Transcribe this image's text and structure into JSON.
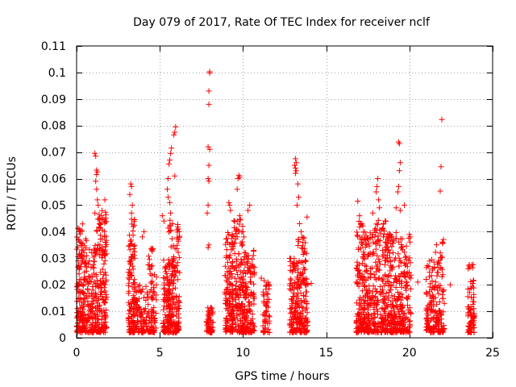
{
  "chart_data": {
    "type": "scatter",
    "title": "Day 079 of 2017, Rate Of TEC Index for receiver nclf",
    "xlabel": "GPS time / hours",
    "ylabel": "ROTI / TECUs",
    "xlim": [
      0,
      25
    ],
    "ylim": [
      0,
      0.11
    ],
    "xticks": [
      "0",
      "5",
      "10",
      "15",
      "20",
      "25"
    ],
    "yticks": [
      "0",
      "0.01",
      "0.02",
      "0.03",
      "0.04",
      "0.05",
      "0.06",
      "0.07",
      "0.08",
      "0.09",
      "0.1",
      "0.11"
    ],
    "grid": true,
    "marker": "plus",
    "color": "#ff0000",
    "clusters": [
      {
        "x": [
          0.0,
          0.6
        ],
        "ymax": 0.043,
        "n": 160
      },
      {
        "x": [
          0.6,
          1.2
        ],
        "ymax": 0.035,
        "n": 120
      },
      {
        "x": [
          1.2,
          1.8
        ],
        "ymax": 0.048,
        "n": 160
      },
      {
        "x": [
          3.1,
          3.5
        ],
        "ymax": 0.045,
        "n": 130
      },
      {
        "x": [
          3.5,
          4.3
        ],
        "ymax": 0.02,
        "n": 90
      },
      {
        "x": [
          4.3,
          4.8
        ],
        "ymax": 0.035,
        "n": 80
      },
      {
        "x": [
          5.2,
          5.6
        ],
        "ymax": 0.03,
        "n": 80
      },
      {
        "x": [
          5.5,
          6.2
        ],
        "ymax": 0.045,
        "n": 170
      },
      {
        "x": [
          7.8,
          8.2
        ],
        "ymax": 0.012,
        "n": 60
      },
      {
        "x": [
          8.9,
          9.4
        ],
        "ymax": 0.04,
        "n": 120
      },
      {
        "x": [
          9.3,
          10.0
        ],
        "ymax": 0.045,
        "n": 150
      },
      {
        "x": [
          10.0,
          10.7
        ],
        "ymax": 0.033,
        "n": 140
      },
      {
        "x": [
          11.2,
          11.6
        ],
        "ymax": 0.022,
        "n": 60
      },
      {
        "x": [
          12.8,
          13.3
        ],
        "ymax": 0.03,
        "n": 110
      },
      {
        "x": [
          13.3,
          13.9
        ],
        "ymax": 0.038,
        "n": 130
      },
      {
        "x": [
          16.8,
          17.3
        ],
        "ymax": 0.044,
        "n": 130
      },
      {
        "x": [
          17.3,
          17.9
        ],
        "ymax": 0.04,
        "n": 130
      },
      {
        "x": [
          17.9,
          18.6
        ],
        "ymax": 0.045,
        "n": 150
      },
      {
        "x": [
          18.6,
          19.3
        ],
        "ymax": 0.04,
        "n": 150
      },
      {
        "x": [
          19.3,
          20.1
        ],
        "ymax": 0.038,
        "n": 150
      },
      {
        "x": [
          21.0,
          21.5
        ],
        "ymax": 0.03,
        "n": 90
      },
      {
        "x": [
          21.5,
          22.1
        ],
        "ymax": 0.038,
        "n": 100
      },
      {
        "x": [
          23.5,
          23.9
        ],
        "ymax": 0.028,
        "n": 80
      }
    ],
    "notable_points": [
      {
        "x": 8.0,
        "y": 0.1003
      },
      {
        "x": 8.0,
        "y": 0.0998
      },
      {
        "x": 7.95,
        "y": 0.093
      },
      {
        "x": 7.95,
        "y": 0.088
      },
      {
        "x": 7.9,
        "y": 0.072
      },
      {
        "x": 8.0,
        "y": 0.071
      },
      {
        "x": 7.95,
        "y": 0.065
      },
      {
        "x": 7.9,
        "y": 0.06
      },
      {
        "x": 7.95,
        "y": 0.059
      },
      {
        "x": 7.9,
        "y": 0.05
      },
      {
        "x": 7.85,
        "y": 0.047
      },
      {
        "x": 7.95,
        "y": 0.035
      },
      {
        "x": 7.9,
        "y": 0.034
      },
      {
        "x": 21.95,
        "y": 0.0823
      },
      {
        "x": 21.9,
        "y": 0.0645
      },
      {
        "x": 21.85,
        "y": 0.0553
      },
      {
        "x": 19.35,
        "y": 0.0738
      },
      {
        "x": 19.4,
        "y": 0.0732
      },
      {
        "x": 19.45,
        "y": 0.066
      },
      {
        "x": 19.4,
        "y": 0.063
      },
      {
        "x": 19.35,
        "y": 0.057
      },
      {
        "x": 19.3,
        "y": 0.055
      },
      {
        "x": 19.45,
        "y": 0.048
      },
      {
        "x": 5.95,
        "y": 0.0795
      },
      {
        "x": 5.9,
        "y": 0.0775
      },
      {
        "x": 5.85,
        "y": 0.0765
      },
      {
        "x": 5.7,
        "y": 0.0715
      },
      {
        "x": 5.65,
        "y": 0.0695
      },
      {
        "x": 5.6,
        "y": 0.067
      },
      {
        "x": 5.55,
        "y": 0.0655
      },
      {
        "x": 5.9,
        "y": 0.061
      },
      {
        "x": 5.5,
        "y": 0.06
      },
      {
        "x": 5.45,
        "y": 0.056
      },
      {
        "x": 5.5,
        "y": 0.053
      },
      {
        "x": 5.6,
        "y": 0.051
      },
      {
        "x": 5.65,
        "y": 0.047
      },
      {
        "x": 5.15,
        "y": 0.046
      },
      {
        "x": 5.25,
        "y": 0.044
      },
      {
        "x": 13.15,
        "y": 0.0675
      },
      {
        "x": 13.2,
        "y": 0.066
      },
      {
        "x": 13.1,
        "y": 0.065
      },
      {
        "x": 13.15,
        "y": 0.064
      },
      {
        "x": 13.2,
        "y": 0.063
      },
      {
        "x": 13.15,
        "y": 0.062
      },
      {
        "x": 13.3,
        "y": 0.058
      },
      {
        "x": 13.35,
        "y": 0.053
      },
      {
        "x": 13.25,
        "y": 0.05
      },
      {
        "x": 13.4,
        "y": 0.043
      },
      {
        "x": 13.85,
        "y": 0.0455
      },
      {
        "x": 13.5,
        "y": 0.04
      },
      {
        "x": 1.1,
        "y": 0.0695
      },
      {
        "x": 1.15,
        "y": 0.0685
      },
      {
        "x": 1.2,
        "y": 0.0632
      },
      {
        "x": 1.25,
        "y": 0.0625
      },
      {
        "x": 1.2,
        "y": 0.0615
      },
      {
        "x": 1.15,
        "y": 0.059
      },
      {
        "x": 1.2,
        "y": 0.056
      },
      {
        "x": 1.25,
        "y": 0.052
      },
      {
        "x": 1.3,
        "y": 0.05
      },
      {
        "x": 1.1,
        "y": 0.047
      },
      {
        "x": 1.7,
        "y": 0.052
      },
      {
        "x": 3.25,
        "y": 0.058
      },
      {
        "x": 3.3,
        "y": 0.057
      },
      {
        "x": 3.2,
        "y": 0.054
      },
      {
        "x": 3.35,
        "y": 0.05
      },
      {
        "x": 3.3,
        "y": 0.047
      },
      {
        "x": 9.75,
        "y": 0.0612
      },
      {
        "x": 9.8,
        "y": 0.0605
      },
      {
        "x": 9.7,
        "y": 0.06
      },
      {
        "x": 9.65,
        "y": 0.056
      },
      {
        "x": 9.15,
        "y": 0.051
      },
      {
        "x": 9.2,
        "y": 0.05
      },
      {
        "x": 9.25,
        "y": 0.048
      },
      {
        "x": 10.4,
        "y": 0.05
      },
      {
        "x": 10.3,
        "y": 0.048
      },
      {
        "x": 9.8,
        "y": 0.046
      },
      {
        "x": 9.85,
        "y": 0.0445
      },
      {
        "x": 18.1,
        "y": 0.06
      },
      {
        "x": 18.05,
        "y": 0.057
      },
      {
        "x": 18.0,
        "y": 0.055
      },
      {
        "x": 18.15,
        "y": 0.052
      },
      {
        "x": 18.2,
        "y": 0.049
      },
      {
        "x": 17.8,
        "y": 0.047
      },
      {
        "x": 16.9,
        "y": 0.0515
      },
      {
        "x": 17.0,
        "y": 0.046
      },
      {
        "x": 19.7,
        "y": 0.05
      },
      {
        "x": 19.2,
        "y": 0.049
      },
      {
        "x": 1.35,
        "y": 0.0465
      },
      {
        "x": 1.4,
        "y": 0.045
      },
      {
        "x": 0.15,
        "y": 0.041
      },
      {
        "x": 0.2,
        "y": 0.04
      },
      {
        "x": 4.05,
        "y": 0.04
      },
      {
        "x": 3.95,
        "y": 0.038
      },
      {
        "x": 10.0,
        "y": 0.04
      },
      {
        "x": 10.05,
        "y": 0.038
      },
      {
        "x": 20.0,
        "y": 0.039
      },
      {
        "x": 20.05,
        "y": 0.038
      },
      {
        "x": 11.1,
        "y": 0.0225
      },
      {
        "x": 14.1,
        "y": 0.0205
      },
      {
        "x": 23.6,
        "y": 0.0275
      },
      {
        "x": 23.75,
        "y": 0.0275
      },
      {
        "x": 20.5,
        "y": 0.021
      },
      {
        "x": 22.45,
        "y": 0.02
      }
    ]
  }
}
